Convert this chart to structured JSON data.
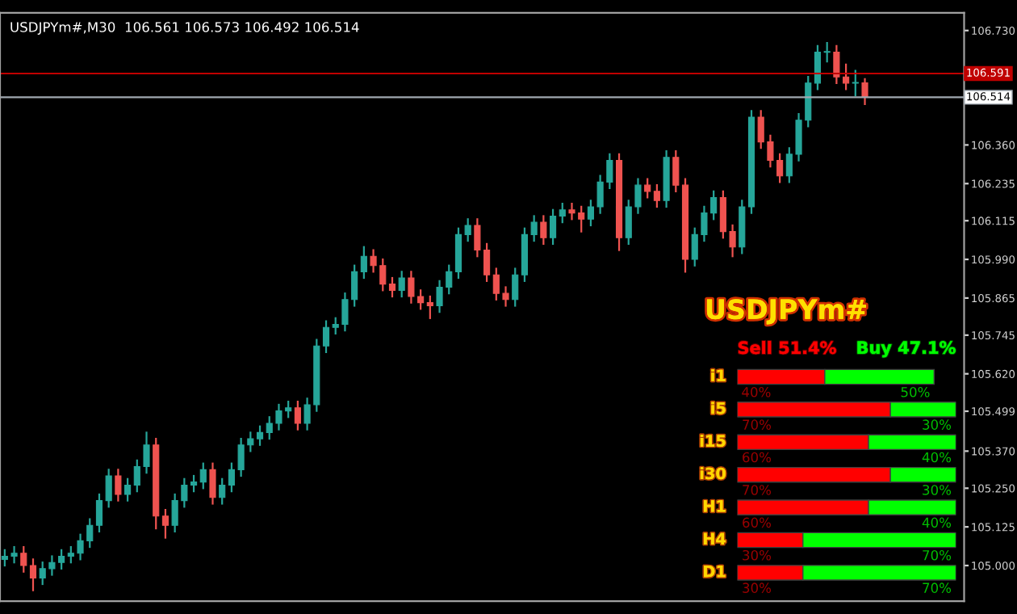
{
  "chart_data": [
    {
      "type": "candlestick",
      "title": "USDJPYm#,M30  106.561 106.573 106.492 106.514",
      "categories": [
        null,
        null,
        null,
        null,
        null,
        null,
        null,
        null,
        null,
        null,
        null,
        null,
        null,
        null,
        null,
        null,
        null,
        null,
        null,
        null,
        null,
        null,
        null,
        null,
        null,
        null,
        null,
        null,
        null,
        null,
        null,
        null,
        null,
        null,
        null,
        null,
        null,
        null,
        null,
        null,
        null,
        null,
        null,
        null,
        null,
        null,
        null,
        null,
        null,
        null,
        null,
        null,
        null,
        null,
        null,
        null,
        null,
        null,
        null,
        null,
        null,
        null,
        null,
        null,
        null,
        null,
        null,
        null,
        null,
        null,
        null,
        null,
        null,
        null,
        null,
        null,
        null,
        null,
        null,
        null,
        null,
        null,
        null,
        null,
        null,
        null,
        null,
        null,
        null,
        null,
        null,
        null,
        null,
        null,
        null,
        null,
        null,
        null,
        null,
        null,
        null,
        null
      ],
      "ohlc": [
        [
          105.02,
          105.05,
          105.0,
          105.03
        ],
        [
          105.03,
          105.06,
          105.01,
          105.04
        ],
        [
          105.04,
          105.06,
          104.98,
          105.0
        ],
        [
          105.0,
          105.02,
          104.92,
          104.96
        ],
        [
          104.96,
          105.01,
          104.94,
          104.99
        ],
        [
          104.99,
          105.03,
          104.97,
          105.01
        ],
        [
          105.01,
          105.05,
          104.99,
          105.03
        ],
        [
          105.03,
          105.06,
          105.01,
          105.04
        ],
        [
          105.04,
          105.1,
          105.02,
          105.08
        ],
        [
          105.08,
          105.15,
          105.06,
          105.13
        ],
        [
          105.13,
          105.23,
          105.11,
          105.21
        ],
        [
          105.21,
          105.31,
          105.19,
          105.29
        ],
        [
          105.29,
          105.31,
          105.21,
          105.23
        ],
        [
          105.23,
          105.28,
          105.21,
          105.26
        ],
        [
          105.26,
          105.34,
          105.24,
          105.32
        ],
        [
          105.32,
          105.43,
          105.3,
          105.39
        ],
        [
          105.39,
          105.41,
          105.12,
          105.16
        ],
        [
          105.16,
          105.18,
          105.09,
          105.13
        ],
        [
          105.13,
          105.23,
          105.11,
          105.21
        ],
        [
          105.21,
          105.28,
          105.19,
          105.26
        ],
        [
          105.26,
          105.29,
          105.24,
          105.27
        ],
        [
          105.27,
          105.33,
          105.25,
          105.31
        ],
        [
          105.31,
          105.33,
          105.2,
          105.22
        ],
        [
          105.22,
          105.28,
          105.2,
          105.26
        ],
        [
          105.26,
          105.33,
          105.24,
          105.31
        ],
        [
          105.31,
          105.41,
          105.29,
          105.39
        ],
        [
          105.39,
          105.43,
          105.37,
          105.41
        ],
        [
          105.41,
          105.45,
          105.39,
          105.43
        ],
        [
          105.43,
          105.48,
          105.41,
          105.46
        ],
        [
          105.46,
          105.52,
          105.44,
          105.5
        ],
        [
          105.5,
          105.53,
          105.48,
          105.51
        ],
        [
          105.51,
          105.53,
          105.44,
          105.46
        ],
        [
          105.46,
          105.54,
          105.44,
          105.52
        ],
        [
          105.52,
          105.73,
          105.5,
          105.71
        ],
        [
          105.71,
          105.79,
          105.69,
          105.77
        ],
        [
          105.77,
          105.8,
          105.75,
          105.78
        ],
        [
          105.78,
          105.88,
          105.76,
          105.86
        ],
        [
          105.86,
          105.97,
          105.84,
          105.95
        ],
        [
          105.95,
          106.03,
          105.93,
          106.0
        ],
        [
          106.0,
          106.02,
          105.95,
          105.97
        ],
        [
          105.97,
          105.99,
          105.89,
          105.91
        ],
        [
          105.91,
          105.93,
          105.87,
          105.89
        ],
        [
          105.89,
          105.95,
          105.87,
          105.93
        ],
        [
          105.93,
          105.95,
          105.85,
          105.87
        ],
        [
          105.87,
          105.89,
          105.83,
          105.85
        ],
        [
          105.85,
          105.87,
          105.8,
          105.84
        ],
        [
          105.84,
          105.92,
          105.82,
          105.9
        ],
        [
          105.9,
          105.97,
          105.88,
          105.95
        ],
        [
          105.95,
          106.09,
          105.93,
          106.07
        ],
        [
          106.07,
          106.12,
          106.05,
          106.1
        ],
        [
          106.1,
          106.12,
          106.0,
          106.02
        ],
        [
          106.02,
          106.04,
          105.92,
          105.94
        ],
        [
          105.94,
          105.96,
          105.86,
          105.88
        ],
        [
          105.88,
          105.9,
          105.84,
          105.86
        ],
        [
          105.86,
          105.96,
          105.84,
          105.94
        ],
        [
          105.94,
          106.09,
          105.92,
          106.07
        ],
        [
          106.07,
          106.13,
          106.05,
          106.11
        ],
        [
          106.11,
          106.13,
          106.04,
          106.06
        ],
        [
          106.06,
          106.15,
          106.04,
          106.13
        ],
        [
          106.13,
          106.17,
          106.11,
          106.15
        ],
        [
          106.15,
          106.17,
          106.12,
          106.14
        ],
        [
          106.14,
          106.16,
          106.08,
          106.12
        ],
        [
          106.12,
          106.18,
          106.1,
          106.16
        ],
        [
          106.16,
          106.26,
          106.14,
          106.24
        ],
        [
          106.24,
          106.33,
          106.22,
          106.31
        ],
        [
          106.31,
          106.33,
          106.02,
          106.06
        ],
        [
          106.06,
          106.18,
          106.04,
          106.16
        ],
        [
          106.16,
          106.25,
          106.14,
          106.23
        ],
        [
          106.23,
          106.25,
          106.19,
          106.21
        ],
        [
          106.21,
          106.23,
          106.16,
          106.18
        ],
        [
          106.18,
          106.34,
          106.16,
          106.32
        ],
        [
          106.32,
          106.34,
          106.21,
          106.23
        ],
        [
          106.23,
          106.25,
          105.95,
          105.99
        ],
        [
          105.99,
          106.09,
          105.97,
          106.07
        ],
        [
          106.07,
          106.16,
          106.05,
          106.14
        ],
        [
          106.14,
          106.21,
          106.12,
          106.19
        ],
        [
          106.19,
          106.21,
          106.06,
          106.08
        ],
        [
          106.08,
          106.1,
          106.0,
          106.03
        ],
        [
          106.03,
          106.18,
          106.01,
          106.16
        ],
        [
          106.16,
          106.47,
          106.14,
          106.45
        ],
        [
          106.45,
          106.47,
          106.35,
          106.37
        ],
        [
          106.37,
          106.39,
          106.29,
          106.31
        ],
        [
          106.31,
          106.33,
          106.24,
          106.26
        ],
        [
          106.26,
          106.35,
          106.24,
          106.33
        ],
        [
          106.33,
          106.46,
          106.31,
          106.44
        ],
        [
          106.44,
          106.58,
          106.42,
          106.56
        ],
        [
          106.56,
          106.68,
          106.54,
          106.66
        ],
        [
          106.66,
          106.69,
          106.63,
          106.66
        ],
        [
          106.66,
          106.68,
          106.56,
          106.58
        ],
        [
          106.58,
          106.62,
          106.54,
          106.56
        ],
        [
          106.56,
          106.6,
          106.52,
          106.56
        ],
        [
          106.561,
          106.573,
          106.492,
          106.514
        ],
        null,
        null,
        null,
        null,
        null,
        null,
        null,
        null,
        null,
        null
      ],
      "colors": [
        "#26a69a",
        "#26a69a",
        "#ef5350",
        "#ef5350",
        "#26a69a",
        "#26a69a",
        "#26a69a",
        "#26a69a",
        "#26a69a",
        "#26a69a",
        "#26a69a",
        "#26a69a",
        "#ef5350",
        "#26a69a",
        "#26a69a",
        "#26a69a",
        "#ef5350",
        "#ef5350",
        "#26a69a",
        "#26a69a",
        "#26a69a",
        "#26a69a",
        "#ef5350",
        "#26a69a",
        "#26a69a",
        "#26a69a",
        "#26a69a",
        "#26a69a",
        "#26a69a",
        "#26a69a",
        "#26a69a",
        "#ef5350",
        "#26a69a",
        "#26a69a",
        "#26a69a",
        "#26a69a",
        "#26a69a",
        "#26a69a",
        "#26a69a",
        "#ef5350",
        "#ef5350",
        "#ef5350",
        "#26a69a",
        "#ef5350",
        "#ef5350",
        "#ef5350",
        "#26a69a",
        "#26a69a",
        "#26a69a",
        "#26a69a",
        "#ef5350",
        "#ef5350",
        "#ef5350",
        "#ef5350",
        "#26a69a",
        "#26a69a",
        "#26a69a",
        "#ef5350",
        "#26a69a",
        "#26a69a",
        "#ef5350",
        "#ef5350",
        "#26a69a",
        "#26a69a",
        "#26a69a",
        "#ef5350",
        "#26a69a",
        "#26a69a",
        "#ef5350",
        "#ef5350",
        "#26a69a",
        "#ef5350",
        "#ef5350",
        "#26a69a",
        "#26a69a",
        "#26a69a",
        "#ef5350",
        "#ef5350",
        "#26a69a",
        "#26a69a",
        "#ef5350",
        "#ef5350",
        "#ef5350",
        "#26a69a",
        "#26a69a",
        "#26a69a",
        "#26a69a",
        "#26a69a",
        "#ef5350",
        "#ef5350",
        "#26a69a",
        "#ef5350",
        null,
        null,
        null,
        null,
        null,
        null,
        null,
        null,
        null,
        null
      ],
      "ylim": [
        104.885,
        106.787
      ],
      "yticks": [
        {
          "value": 105.0,
          "label": "105.000"
        },
        {
          "value": 105.125,
          "label": "105.125"
        },
        {
          "value": 105.25,
          "label": "105.250"
        },
        {
          "value": 105.37,
          "label": "105.370"
        },
        {
          "value": 105.499,
          "label": "105.499"
        },
        {
          "value": 105.62,
          "label": "105.620"
        },
        {
          "value": 105.745,
          "label": "105.745"
        },
        {
          "value": 105.865,
          "label": "105.865"
        },
        {
          "value": 105.99,
          "label": "105.990"
        },
        {
          "value": 106.115,
          "label": "106.115"
        },
        {
          "value": 106.235,
          "label": "106.235"
        },
        {
          "value": 106.36,
          "label": "106.360"
        },
        {
          "value": 106.73,
          "label": "106.730"
        }
      ],
      "ref_lines": [
        {
          "axis": "y",
          "value": 106.591,
          "label": "106.591",
          "color": "#c00000"
        },
        {
          "axis": "y",
          "value": 106.514,
          "label": "106.514",
          "color": "#a0a8b0"
        }
      ],
      "grid": false
    },
    {
      "type": "bar",
      "orientation": "horizontal",
      "stacked": true,
      "title": "USDJPYm#",
      "categories": [
        "i1",
        "i5",
        "i15",
        "i30",
        "H1",
        "H4",
        "D1"
      ],
      "series": [
        {
          "name": "Sell 51.4%",
          "color": "#ff0000",
          "values": [
            40,
            70,
            60,
            70,
            60,
            30,
            30
          ],
          "value_labels": [
            "40%",
            "70%",
            "60%",
            "70%",
            "60%",
            "30%",
            "30%"
          ]
        },
        {
          "name": "Buy 47.1%",
          "color": "#00ff00",
          "values": [
            50,
            30,
            40,
            30,
            40,
            70,
            70
          ],
          "value_labels": [
            "50%",
            "30%",
            "40%",
            "30%",
            "40%",
            "70%",
            "70%"
          ]
        }
      ],
      "legend": "top"
    }
  ]
}
